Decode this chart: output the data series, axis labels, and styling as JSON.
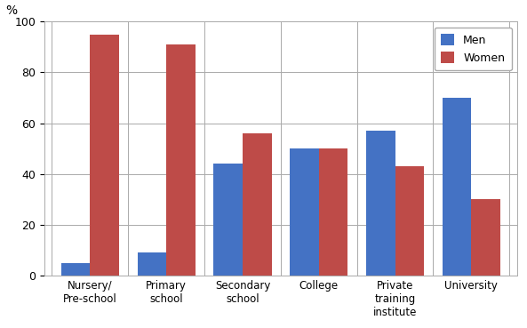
{
  "categories": [
    "Nursery/\nPre-school",
    "Primary\nschool",
    "Secondary\nschool",
    "College",
    "Private\ntraining\ninstitute",
    "University"
  ],
  "men_values": [
    5,
    9,
    44,
    50,
    57,
    70
  ],
  "women_values": [
    95,
    91,
    56,
    50,
    43,
    30
  ],
  "men_color": "#4472C4",
  "women_color": "#BE4B48",
  "ylabel": "%",
  "ylim": [
    0,
    100
  ],
  "yticks": [
    0,
    20,
    40,
    60,
    80,
    100
  ],
  "legend_labels": [
    "Men",
    "Women"
  ],
  "bar_width": 0.38,
  "figure_width": 5.93,
  "figure_height": 3.69,
  "dpi": 100
}
